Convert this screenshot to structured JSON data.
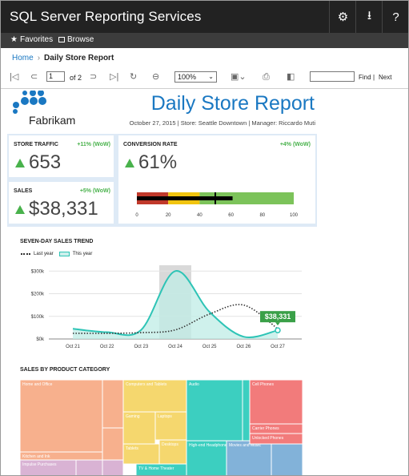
{
  "app": {
    "title": "SQL Server Reporting Services",
    "icons": [
      "gear-icon",
      "download-icon",
      "help-icon"
    ],
    "help_glyph": "?",
    "download_glyph": "⭳",
    "settings_glyph": "⚙"
  },
  "nav": {
    "favorites": "Favorites",
    "browse": "Browse"
  },
  "breadcrumb": {
    "home": "Home",
    "current": "Daily Store Report"
  },
  "toolbar": {
    "page": "1",
    "of_label": "of 2",
    "zoom": "100%",
    "find": "Find",
    "separator": "|",
    "next": "Next"
  },
  "report": {
    "company": "Fabrikam",
    "title": "Daily Store Report",
    "subtitle": "October 27, 2015  |  Store: Seattle Downtown  |  Manager: Riccardo Muti"
  },
  "kpis": {
    "store_traffic": {
      "label": "STORE TRAFFIC",
      "change": "+11% (WoW)",
      "value": "653"
    },
    "sales": {
      "label": "SALES",
      "change": "+5% (WoW)",
      "value": "$38,331"
    },
    "conversion": {
      "label": "CONVERSION RATE",
      "change": "+4% (WoW)",
      "value": "61%",
      "gauge": {
        "min": 0,
        "max": 100,
        "ticks": [
          "0",
          "20",
          "40",
          "60",
          "80",
          "100"
        ],
        "value": 61,
        "target": 50,
        "bands": [
          {
            "from": 0,
            "to": 20,
            "color": "#c0392b"
          },
          {
            "from": 20,
            "to": 40,
            "color": "#f1c40f"
          },
          {
            "from": 40,
            "to": 100,
            "color": "#7cc35a"
          }
        ]
      }
    }
  },
  "trend": {
    "title": "SEVEN-DAY SALES TREND",
    "legend": {
      "last_year": "Last year",
      "this_year": "This year"
    },
    "chart_data": {
      "type": "line",
      "categories": [
        "Oct 21",
        "Oct 22",
        "Oct 23",
        "Oct 24",
        "Oct 25",
        "Oct 26",
        "Oct 27"
      ],
      "y_ticks": [
        "$0k",
        "$100k",
        "$200k",
        "$300k"
      ],
      "ylim": [
        0,
        340000
      ],
      "highlight_category": "Oct 24",
      "series": [
        {
          "name": "This year",
          "values": [
            45000,
            30000,
            40000,
            300000,
            120000,
            10000,
            38331
          ],
          "color": "#2ec4b6"
        },
        {
          "name": "Last year",
          "values": [
            25000,
            25000,
            28000,
            40000,
            110000,
            150000,
            45000
          ],
          "color": "#333333"
        }
      ],
      "annotation": "$38,331"
    }
  },
  "category": {
    "title": "SALES BY PRODUCT CATEGORY",
    "chart_data": {
      "type": "treemap",
      "items": [
        {
          "name": "Home and Office",
          "color": "#f7b08d"
        },
        {
          "name": "Computers and Tablets",
          "color": "#f5d76e"
        },
        {
          "name": "Gaming",
          "color": "#f5d76e"
        },
        {
          "name": "Laptops",
          "color": "#f5d76e"
        },
        {
          "name": "Desktops",
          "color": "#f5d76e"
        },
        {
          "name": "Tablets",
          "color": "#f5d76e"
        },
        {
          "name": "Audio",
          "color": "#3ccfc0"
        },
        {
          "name": "High-end Headphones",
          "color": "#3ccfc0"
        },
        {
          "name": "Movies and Music",
          "color": "#82b2d9"
        },
        {
          "name": "Cell Phones",
          "color": "#f27b7b"
        },
        {
          "name": "Carrier Phones",
          "color": "#f27b7b"
        },
        {
          "name": "Unlocked Phones",
          "color": "#f27b7b"
        },
        {
          "name": "Kitchen and Ink",
          "color": "#f7b08d"
        },
        {
          "name": "Impulse Purchases",
          "color": "#d9b3d4"
        },
        {
          "name": "TV & Home Theater",
          "color": "#3ccfc0"
        }
      ]
    }
  }
}
